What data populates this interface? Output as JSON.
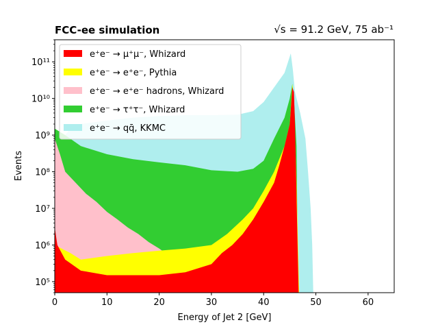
{
  "chart_data": {
    "type": "area",
    "title_left": "FCC-ee simulation",
    "title_right": "√s = 91.2 GeV, 75 ab⁻¹",
    "xlabel": "Energy of Jet 2 [GeV]",
    "ylabel": "Events",
    "xlim": [
      0,
      65
    ],
    "ylim": [
      50000,
      400000000000
    ],
    "yscale": "log",
    "grid": false,
    "legend_position": "top-left",
    "x_ticks": [
      {
        "value": 0,
        "label": "0"
      },
      {
        "value": 10,
        "label": "10"
      },
      {
        "value": 20,
        "label": "20"
      },
      {
        "value": 30,
        "label": "30"
      },
      {
        "value": 40,
        "label": "40"
      },
      {
        "value": 50,
        "label": "50"
      },
      {
        "value": 60,
        "label": "60"
      }
    ],
    "y_ticks": [
      {
        "value": 100000,
        "label": "10⁵"
      },
      {
        "value": 1000000,
        "label": "10⁶"
      },
      {
        "value": 10000000,
        "label": "10⁷"
      },
      {
        "value": 100000000,
        "label": "10⁸"
      },
      {
        "value": 1000000000,
        "label": "10⁹"
      },
      {
        "value": 10000000000,
        "label": "10¹⁰"
      },
      {
        "value": 100000000000,
        "label": "10¹¹"
      }
    ],
    "series": [
      {
        "name": "e⁺e⁻ → qq̄, KKMC",
        "color": "#afeeee",
        "points": [
          [
            0,
            20000000.0
          ],
          [
            2,
            1000000000.0
          ],
          [
            3,
            1500000000.0
          ],
          [
            5,
            2000000000.0
          ],
          [
            10,
            2500000000.0
          ],
          [
            15,
            3000000000.0
          ],
          [
            20,
            3300000000.0
          ],
          [
            25,
            3500000000.0
          ],
          [
            30,
            3500000000.0
          ],
          [
            35,
            3600000000.0
          ],
          [
            38,
            4500000000.0
          ],
          [
            40,
            8000000000.0
          ],
          [
            42,
            20000000000.0
          ],
          [
            44,
            50000000000.0
          ],
          [
            45.2,
            170000000000.0
          ],
          [
            45.6,
            60000000000.0
          ],
          [
            46,
            15000000000.0
          ],
          [
            47,
            4000000000.0
          ],
          [
            48,
            800000000.0
          ],
          [
            48.5,
            100000000.0
          ],
          [
            49,
            10000000.0
          ],
          [
            49.3,
            1000000.0
          ],
          [
            49.5,
            50000.0
          ]
        ]
      },
      {
        "name": "e⁺e⁻ → τ⁺τ⁻, Whizard",
        "color": "#32cd32",
        "points": [
          [
            0,
            1500000000.0
          ],
          [
            2,
            1000000000.0
          ],
          [
            5,
            500000000.0
          ],
          [
            10,
            300000000.0
          ],
          [
            15,
            220000000.0
          ],
          [
            20,
            180000000.0
          ],
          [
            25,
            150000000.0
          ],
          [
            30,
            110000000.0
          ],
          [
            35,
            100000000.0
          ],
          [
            38,
            120000000.0
          ],
          [
            40,
            200000000.0
          ],
          [
            42,
            800000000.0
          ],
          [
            44,
            3000000000.0
          ],
          [
            45,
            10000000000.0
          ],
          [
            45.5,
            25000000000.0
          ],
          [
            45.8,
            10000000000.0
          ],
          [
            46,
            3000000000.0
          ],
          [
            46.3,
            500000000.0
          ],
          [
            46.6,
            50000.0
          ]
        ]
      },
      {
        "name": "e⁺e⁻ → e⁺e⁻ hadrons, Whizard",
        "color": "#ffc0cb",
        "points": [
          [
            0,
            800000000.0
          ],
          [
            1,
            300000000.0
          ],
          [
            2,
            100000000.0
          ],
          [
            4,
            50000000.0
          ],
          [
            6,
            25000000.0
          ],
          [
            8,
            15000000.0
          ],
          [
            10,
            8000000.0
          ],
          [
            12,
            5000000.0
          ],
          [
            14,
            3000000.0
          ],
          [
            16,
            2000000.0
          ],
          [
            18,
            1200000.0
          ],
          [
            20,
            800000.0
          ],
          [
            22,
            500000.0
          ],
          [
            25,
            200000.0
          ],
          [
            28,
            100000.0
          ],
          [
            30,
            50000.0
          ]
        ]
      },
      {
        "name": "e⁺e⁻ → e⁺e⁻, Pythia",
        "color": "#ffff00",
        "points": [
          [
            0,
            1000000.0
          ],
          [
            3,
            600000.0
          ],
          [
            5,
            400000.0
          ],
          [
            10,
            500000.0
          ],
          [
            15,
            600000.0
          ],
          [
            20,
            700000.0
          ],
          [
            25,
            800000.0
          ],
          [
            30,
            1000000.0
          ],
          [
            33,
            2000000.0
          ],
          [
            36,
            5000000.0
          ],
          [
            38,
            10000000.0
          ],
          [
            40,
            30000000.0
          ],
          [
            42,
            100000000.0
          ],
          [
            44,
            500000000.0
          ],
          [
            45,
            2000000000.0
          ],
          [
            45.5,
            25000000000.0
          ],
          [
            45.8,
            10000000000.0
          ],
          [
            46,
            1000000000.0
          ],
          [
            46.3,
            50000000.0
          ],
          [
            46.8,
            50000.0
          ]
        ]
      },
      {
        "name": "e⁺e⁻ → μ⁺μ⁻, Whizard",
        "color": "#ff0000",
        "points": [
          [
            0,
            3000000.0
          ],
          [
            0.5,
            1000000.0
          ],
          [
            2,
            400000.0
          ],
          [
            5,
            200000.0
          ],
          [
            10,
            150000.0
          ],
          [
            20,
            150000.0
          ],
          [
            25,
            180000.0
          ],
          [
            30,
            300000.0
          ],
          [
            32,
            600000.0
          ],
          [
            34,
            1000000.0
          ],
          [
            36,
            2000000.0
          ],
          [
            38,
            5000000.0
          ],
          [
            40,
            15000000.0
          ],
          [
            42,
            50000000.0
          ],
          [
            43,
            150000000.0
          ],
          [
            44,
            500000000.0
          ],
          [
            45,
            2000000000.0
          ],
          [
            45.5,
            20000000000.0
          ],
          [
            45.8,
            15000000000.0
          ],
          [
            46,
            2000000000.0
          ],
          [
            46.2,
            100000000.0
          ],
          [
            46.5,
            1000000.0
          ],
          [
            46.7,
            50000.0
          ]
        ]
      }
    ],
    "legend": [
      {
        "label": "e⁺e⁻ → μ⁺μ⁻, Whizard",
        "color": "#ff0000"
      },
      {
        "label": "e⁺e⁻ → e⁺e⁻, Pythia",
        "color": "#ffff00"
      },
      {
        "label": "e⁺e⁻ → e⁺e⁻ hadrons, Whizard",
        "color": "#ffc0cb"
      },
      {
        "label": "e⁺e⁻ → τ⁺τ⁻, Whizard",
        "color": "#32cd32"
      },
      {
        "label": "e⁺e⁻ → qq̄, KKMC",
        "color": "#afeeee"
      }
    ]
  }
}
